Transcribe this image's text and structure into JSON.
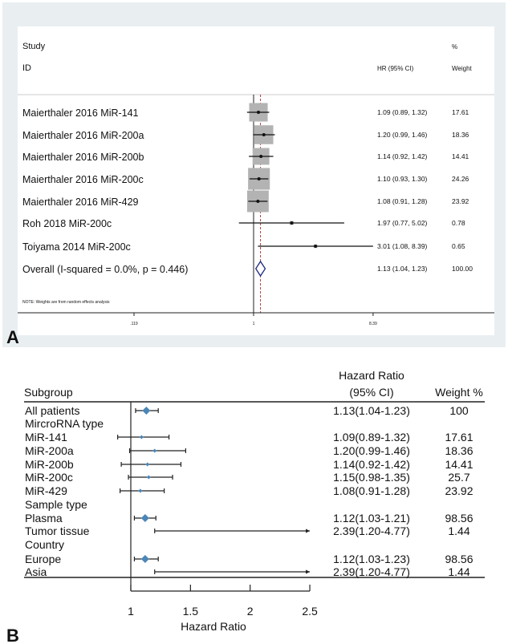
{
  "chart_data": [
    {
      "type": "forest",
      "panel_label": "A",
      "scale": "log",
      "header": {
        "study": "Study",
        "id": "ID",
        "hr": "HR (95% CI)",
        "pct": "%",
        "weight": "Weight"
      },
      "rows": [
        {
          "label": "Maierthaler 2016 MiR-141",
          "hr": 1.09,
          "lo": 0.89,
          "hi": 1.32,
          "hr_text": "1.09 (0.89, 1.32)",
          "weight": "17.61"
        },
        {
          "label": "Maierthaler 2016 MiR-200a",
          "hr": 1.2,
          "lo": 0.99,
          "hi": 1.46,
          "hr_text": "1.20 (0.99, 1.46)",
          "weight": "18.36"
        },
        {
          "label": "Maierthaler 2016 MiR-200b",
          "hr": 1.14,
          "lo": 0.92,
          "hi": 1.42,
          "hr_text": "1.14 (0.92, 1.42)",
          "weight": "14.41"
        },
        {
          "label": "Maierthaler 2016 MiR-200c",
          "hr": 1.1,
          "lo": 0.93,
          "hi": 1.3,
          "hr_text": "1.10 (0.93, 1.30)",
          "weight": "24.26"
        },
        {
          "label": "Maierthaler 2016 MiR-429",
          "hr": 1.08,
          "lo": 0.91,
          "hi": 1.28,
          "hr_text": "1.08 (0.91, 1.28)",
          "weight": "23.92"
        },
        {
          "label": "Roh 2018 MiR-200c",
          "hr": 1.97,
          "lo": 0.77,
          "hi": 5.02,
          "hr_text": "1.97 (0.77, 5.02)",
          "weight": "0.78"
        },
        {
          "label": "Toiyama 2014 MiR-200c",
          "hr": 3.01,
          "lo": 1.08,
          "hi": 8.39,
          "hr_text": "3.01 (1.08, 8.39)",
          "weight": "0.65"
        }
      ],
      "overall": {
        "label": "Overall  (I-squared = 0.0%, p = 0.446)",
        "hr": 1.13,
        "lo": 1.04,
        "hi": 1.23,
        "hr_text": "1.13 (1.04, 1.23)",
        "weight": "100.00"
      },
      "note": "NOTE: Weights are from random effects analysis",
      "xticks": [
        {
          "v": 0.119,
          "label": ".119"
        },
        {
          "v": 1,
          "label": "1"
        },
        {
          "v": 8.39,
          "label": "8.39"
        }
      ],
      "xlim": [
        0.119,
        8.39
      ],
      "colors": {
        "box": "#b3b3b3",
        "diamond": "#1f2a80",
        "ref": "#b04040",
        "panel_bg": "#e9eff1"
      }
    },
    {
      "type": "forest",
      "panel_label": "B",
      "scale": "linear",
      "header": {
        "subgroup": "Subgroup",
        "hr_line1": "Hazard Ratio",
        "hr_line2": "(95% CI)",
        "weight": "Weight %"
      },
      "rows": [
        {
          "label": "All patients",
          "hr": 1.13,
          "lo": 1.04,
          "hi": 1.23,
          "hr_text": "1.13(1.04-1.23)",
          "weight": "100",
          "big": true
        },
        {
          "label": "MircroRNA type"
        },
        {
          "label": "MiR-141",
          "hr": 1.09,
          "lo": 0.89,
          "hi": 1.32,
          "hr_text": "1.09(0.89-1.32)",
          "weight": "17.61"
        },
        {
          "label": "MiR-200a",
          "hr": 1.2,
          "lo": 0.99,
          "hi": 1.46,
          "hr_text": "1.20(0.99-1.46)",
          "weight": "18.36"
        },
        {
          "label": "MiR-200b",
          "hr": 1.14,
          "lo": 0.92,
          "hi": 1.42,
          "hr_text": "1.14(0.92-1.42)",
          "weight": "14.41"
        },
        {
          "label": "MiR-200c",
          "hr": 1.15,
          "lo": 0.98,
          "hi": 1.35,
          "hr_text": "1.15(0.98-1.35)",
          "weight": "25.7"
        },
        {
          "label": "MiR-429",
          "hr": 1.08,
          "lo": 0.91,
          "hi": 1.28,
          "hr_text": "1.08(0.91-1.28)",
          "weight": "23.92"
        },
        {
          "label": "Sample type"
        },
        {
          "label": "Plasma",
          "hr": 1.12,
          "lo": 1.03,
          "hi": 1.21,
          "hr_text": "1.12(1.03-1.21)",
          "weight": "98.56",
          "big": true
        },
        {
          "label": "Tumor tissue",
          "hr": 2.39,
          "lo": 1.2,
          "hi": 4.77,
          "hr_text": "2.39(1.20-4.77)",
          "weight": "1.44"
        },
        {
          "label": "Country"
        },
        {
          "label": "Europe",
          "hr": 1.12,
          "lo": 1.03,
          "hi": 1.23,
          "hr_text": "1.12(1.03-1.23)",
          "weight": "98.56",
          "big": true
        },
        {
          "label": "Asia",
          "hr": 2.39,
          "lo": 1.2,
          "hi": 4.77,
          "hr_text": "2.39(1.20-4.77)",
          "weight": "1.44"
        }
      ],
      "xlabel": "Hazard Ratio",
      "xticks": [
        1,
        1.5,
        2,
        2.5
      ],
      "xlim": [
        1,
        2.5
      ],
      "colors": {
        "marker": "#4a86b8"
      }
    }
  ]
}
